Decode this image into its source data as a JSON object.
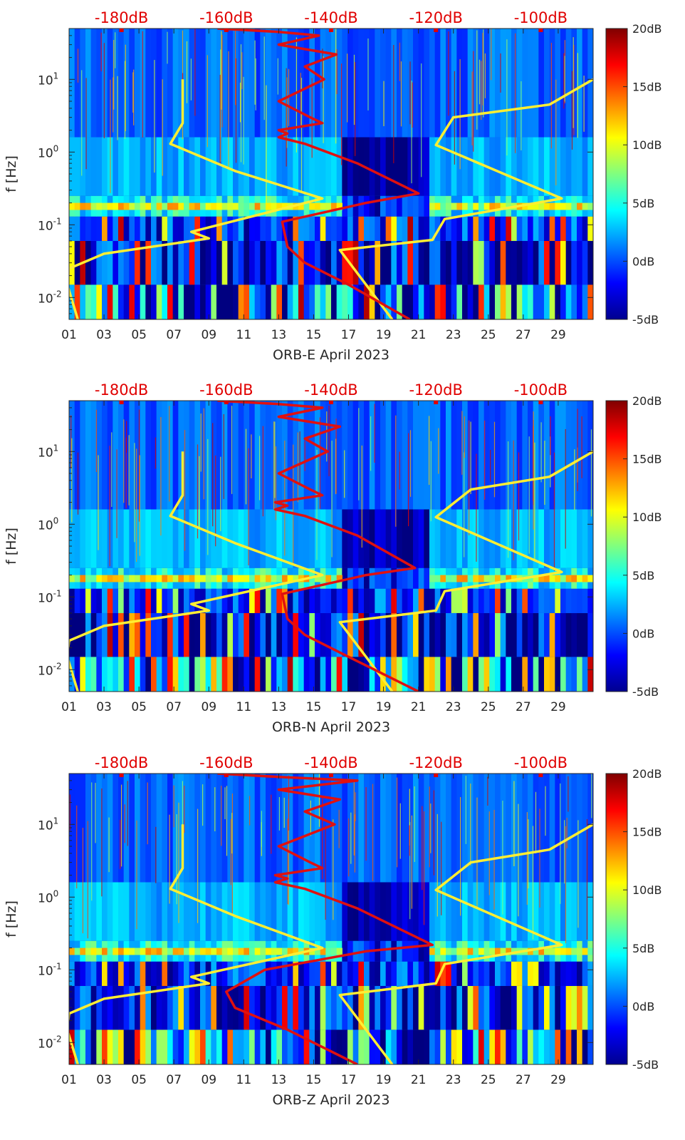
{
  "chart_data": [
    {
      "type": "heatmap",
      "station": "ORB-E",
      "xlabel": "ORB-E April 2023",
      "ylabel": "f [Hz]",
      "xticks": [
        "01",
        "03",
        "05",
        "07",
        "09",
        "11",
        "13",
        "15",
        "17",
        "19",
        "21",
        "23",
        "25",
        "27",
        "29"
      ],
      "xlim": [
        1,
        31
      ],
      "ylim": [
        0.005,
        50
      ],
      "yticks": [
        {
          "v": 0.01,
          "b": "10",
          "e": "-2"
        },
        {
          "v": 0.1,
          "b": "10",
          "e": "-1"
        },
        {
          "v": 1,
          "b": "10",
          "e": "0"
        },
        {
          "v": 10,
          "b": "10",
          "e": "1"
        }
      ],
      "top_ticks": [
        "-180dB",
        "-160dB",
        "-140dB",
        "-120dB",
        "-100dB"
      ],
      "top_axis_range": [
        -190,
        -90
      ],
      "colorbar": {
        "ticks": [
          "20dB",
          "15dB",
          "10dB",
          "5dB",
          "0dB",
          "-5dB"
        ],
        "range": [
          -5,
          20
        ]
      },
      "series": [
        {
          "name": "yellow-envelope-left",
          "color": "#ffee33",
          "x": [
            7.5,
            7.5,
            6.8,
            10.5,
            15.5,
            8.0,
            9.0,
            3.0,
            1.0,
            0.9,
            1.5
          ],
          "f": [
            10,
            2.5,
            1.3,
            0.55,
            0.23,
            0.08,
            0.065,
            0.04,
            0.025,
            0.015,
            0.005
          ]
        },
        {
          "name": "yellow-envelope-right",
          "color": "#ffee33",
          "x": [
            31,
            28.5,
            23,
            22,
            29.2,
            22.5,
            21.8,
            16.5,
            19.5
          ],
          "f": [
            10,
            4.5,
            3,
            1.25,
            0.23,
            0.12,
            0.062,
            0.045,
            0.005
          ]
        },
        {
          "name": "red-median-psd",
          "color": "#e01010",
          "x": [
            9.5,
            13,
            15.3,
            13,
            16.3,
            14.5,
            15.6,
            13.0,
            14.8,
            15.5,
            13,
            13.5,
            13,
            14.5,
            17.5,
            21,
            18,
            13.2,
            13.5,
            14.5,
            17,
            20.5
          ],
          "f": [
            50,
            45,
            40,
            30,
            22,
            15,
            10,
            5,
            3,
            2.5,
            2.0,
            1.8,
            1.6,
            1.3,
            0.7,
            0.27,
            0.2,
            0.11,
            0.05,
            0.03,
            0.015,
            0.005
          ]
        }
      ]
    },
    {
      "type": "heatmap",
      "station": "ORB-N",
      "xlabel": "ORB-N April 2023",
      "ylabel": "f [Hz]",
      "xticks": [
        "01",
        "03",
        "05",
        "07",
        "09",
        "11",
        "13",
        "15",
        "17",
        "19",
        "21",
        "23",
        "25",
        "27",
        "29"
      ],
      "xlim": [
        1,
        31
      ],
      "ylim": [
        0.005,
        50
      ],
      "yticks": [
        {
          "v": 0.01,
          "b": "10",
          "e": "-2"
        },
        {
          "v": 0.1,
          "b": "10",
          "e": "-1"
        },
        {
          "v": 1,
          "b": "10",
          "e": "0"
        },
        {
          "v": 10,
          "b": "10",
          "e": "1"
        }
      ],
      "top_ticks": [
        "-180dB",
        "-160dB",
        "-140dB",
        "-120dB",
        "-100dB"
      ],
      "top_axis_range": [
        -190,
        -90
      ],
      "colorbar": {
        "ticks": [
          "20dB",
          "15dB",
          "10dB",
          "5dB",
          "0dB",
          "-5dB"
        ],
        "range": [
          -5,
          20
        ]
      },
      "series": [
        {
          "name": "yellow-envelope-left",
          "color": "#ffee33",
          "x": [
            7.5,
            7.5,
            6.8,
            10.5,
            15.5,
            8.0,
            9.0,
            3.0,
            1.0,
            0.9,
            1.5
          ],
          "f": [
            10,
            2.5,
            1.3,
            0.55,
            0.2,
            0.08,
            0.065,
            0.04,
            0.025,
            0.015,
            0.005
          ]
        },
        {
          "name": "yellow-envelope-right",
          "color": "#ffee33",
          "x": [
            31,
            28.5,
            24,
            22,
            29.2,
            22.5,
            22,
            16.5,
            19.5
          ],
          "f": [
            10,
            4.5,
            3,
            1.25,
            0.22,
            0.12,
            0.065,
            0.045,
            0.005
          ]
        },
        {
          "name": "red-median-psd",
          "color": "#e01010",
          "x": [
            9.5,
            13,
            15.5,
            13,
            16.5,
            14.5,
            15.8,
            13.0,
            14.8,
            15.5,
            12.8,
            13.5,
            12.8,
            14.5,
            17.5,
            20.8,
            18,
            13.2,
            13.5,
            14.5,
            17,
            21
          ],
          "f": [
            50,
            45,
            40,
            30,
            22,
            15,
            10,
            5,
            3,
            2.5,
            2.0,
            1.8,
            1.6,
            1.3,
            0.7,
            0.25,
            0.2,
            0.11,
            0.05,
            0.03,
            0.015,
            0.005
          ]
        }
      ]
    },
    {
      "type": "heatmap",
      "station": "ORB-Z",
      "xlabel": "ORB-Z April 2023",
      "ylabel": "f [Hz]",
      "xticks": [
        "01",
        "03",
        "05",
        "07",
        "09",
        "11",
        "13",
        "15",
        "17",
        "19",
        "21",
        "23",
        "25",
        "27",
        "29"
      ],
      "xlim": [
        1,
        31
      ],
      "ylim": [
        0.005,
        50
      ],
      "yticks": [
        {
          "v": 0.01,
          "b": "10",
          "e": "-2"
        },
        {
          "v": 0.1,
          "b": "10",
          "e": "-1"
        },
        {
          "v": 1,
          "b": "10",
          "e": "0"
        },
        {
          "v": 10,
          "b": "10",
          "e": "1"
        }
      ],
      "top_ticks": [
        "-180dB",
        "-160dB",
        "-140dB",
        "-120dB",
        "-100dB"
      ],
      "top_axis_range": [
        -190,
        -90
      ],
      "colorbar": {
        "ticks": [
          "20dB",
          "15dB",
          "10dB",
          "5dB",
          "0dB",
          "-5dB"
        ],
        "range": [
          -5,
          20
        ]
      },
      "series": [
        {
          "name": "yellow-envelope-left",
          "color": "#ffee33",
          "x": [
            7.5,
            7.5,
            6.8,
            10.5,
            15.5,
            8.0,
            9.0,
            3.0,
            1.0,
            0.9,
            1.5
          ],
          "f": [
            10,
            2.5,
            1.3,
            0.55,
            0.2,
            0.08,
            0.065,
            0.04,
            0.025,
            0.015,
            0.005
          ]
        },
        {
          "name": "yellow-envelope-right",
          "color": "#ffee33",
          "x": [
            31,
            28.5,
            24,
            22,
            29.2,
            22.5,
            22,
            16.5,
            19.5
          ],
          "f": [
            10,
            4.5,
            3,
            1.25,
            0.22,
            0.12,
            0.065,
            0.045,
            0.005
          ]
        },
        {
          "name": "red-median-psd",
          "color": "#e01010",
          "x": [
            9.5,
            13,
            17.5,
            13,
            16.5,
            14.5,
            16.2,
            13.0,
            14.8,
            15.5,
            12.8,
            13.5,
            12.8,
            14.5,
            17.5,
            21.8,
            18,
            12.2,
            10,
            10.5,
            13.5,
            17.5
          ],
          "f": [
            50,
            45,
            40,
            30,
            22,
            15,
            10,
            5,
            3,
            2.5,
            2.0,
            1.8,
            1.6,
            1.3,
            0.7,
            0.22,
            0.18,
            0.1,
            0.05,
            0.03,
            0.015,
            0.005
          ]
        }
      ]
    }
  ]
}
